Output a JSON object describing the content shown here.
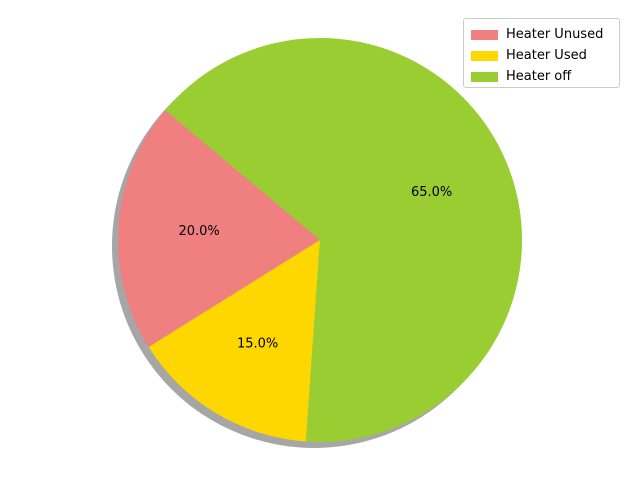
{
  "chart_data": {
    "type": "pie",
    "title": "",
    "categories": [
      "Heater Unused",
      "Heater Used",
      "Heater off"
    ],
    "values": [
      20.0,
      15.0,
      65.0
    ],
    "labels": [
      "20.0%",
      "15.0%",
      "65.0%"
    ],
    "colors": [
      "#f08080",
      "#ffd700",
      "#9acd32"
    ],
    "start_angle_degrees": 140,
    "shadow": true,
    "legend_position": "top-right"
  }
}
